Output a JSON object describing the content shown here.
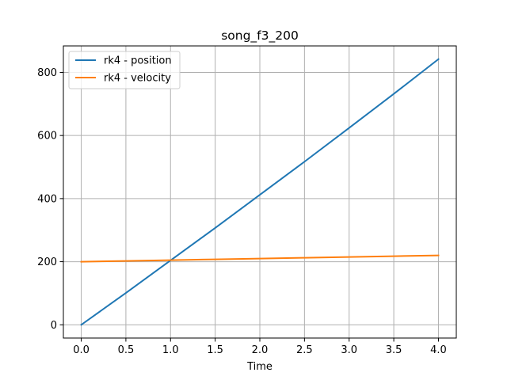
{
  "chart_data": {
    "type": "line",
    "title": "song_f3_200",
    "xlabel": "Time",
    "ylabel": "",
    "xlim": [
      -0.2,
      4.2
    ],
    "ylim": [
      -42,
      884
    ],
    "xticks": [
      0.0,
      0.5,
      1.0,
      1.5,
      2.0,
      2.5,
      3.0,
      3.5,
      4.0
    ],
    "xtick_labels": [
      "0.0",
      "0.5",
      "1.0",
      "1.5",
      "2.0",
      "2.5",
      "3.0",
      "3.5",
      "4.0"
    ],
    "yticks": [
      0,
      200,
      400,
      600,
      800
    ],
    "ytick_labels": [
      "0",
      "200",
      "400",
      "600",
      "800"
    ],
    "grid": true,
    "legend_position": "top-left",
    "series": [
      {
        "name": "rk4 - position",
        "color": "#1f77b4",
        "x": [
          0.0,
          0.5,
          1.0,
          1.5,
          2.0,
          2.5,
          3.0,
          3.5,
          4.0
        ],
        "y": [
          0,
          101,
          204,
          307,
          412,
          517,
          624,
          732,
          842
        ]
      },
      {
        "name": "rk4 - velocity",
        "color": "#ff7f0e",
        "x": [
          0.0,
          0.5,
          1.0,
          1.5,
          2.0,
          2.5,
          3.0,
          3.5,
          4.0
        ],
        "y": [
          200,
          202.5,
          205,
          207.5,
          210,
          212.5,
          215,
          217.5,
          220
        ]
      }
    ]
  }
}
